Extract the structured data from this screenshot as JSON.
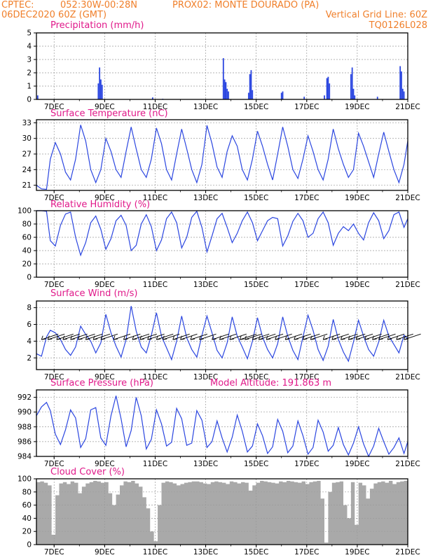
{
  "header": {
    "line1_left": "CPTEC:",
    "line1_coords": "052:30W-00:28N",
    "line1_station": "PROX02: MONTE DOURADO (PA)",
    "line2_left": "06DEC2020 60Z (GMT)",
    "line2_right": "Vertical Grid Line: 60Z",
    "line3_right": "TQ0126L028"
  },
  "colors": {
    "header": "#f07f2a",
    "panel_title": "#e0198a",
    "series_line": "#2b46e0",
    "cloud_fill": "#a9a9a9",
    "arrows": "#000000"
  },
  "chart_data": [
    {
      "type": "bar",
      "title": "Precipitation (mm/h)",
      "x_tick_labels": [
        "7DEC",
        "9DEC",
        "11DEC",
        "13DEC",
        "15DEC",
        "17DEC",
        "19DEC",
        "21DEC"
      ],
      "x_range_days": [
        6.3,
        21.0
      ],
      "ylim": [
        0,
        5
      ],
      "yticks": [
        0,
        1,
        2,
        3,
        4,
        5
      ],
      "grid": true,
      "points": [
        {
          "x": 6.35,
          "y": 0.3
        },
        {
          "x": 8.75,
          "y": 1.2
        },
        {
          "x": 8.8,
          "y": 2.4
        },
        {
          "x": 8.85,
          "y": 1.5
        },
        {
          "x": 8.9,
          "y": 1.1
        },
        {
          "x": 10.9,
          "y": 0.15
        },
        {
          "x": 11.3,
          "y": 0.05
        },
        {
          "x": 13.7,
          "y": 3.1
        },
        {
          "x": 13.75,
          "y": 1.5
        },
        {
          "x": 13.8,
          "y": 1.3
        },
        {
          "x": 13.85,
          "y": 0.8
        },
        {
          "x": 13.9,
          "y": 0.6
        },
        {
          "x": 14.7,
          "y": 0.5
        },
        {
          "x": 14.75,
          "y": 1.9
        },
        {
          "x": 14.8,
          "y": 2.2
        },
        {
          "x": 14.85,
          "y": 0.7
        },
        {
          "x": 16.0,
          "y": 0.5
        },
        {
          "x": 16.05,
          "y": 0.6
        },
        {
          "x": 16.9,
          "y": 0.2
        },
        {
          "x": 17.7,
          "y": 0.3
        },
        {
          "x": 17.8,
          "y": 1.6
        },
        {
          "x": 17.85,
          "y": 1.7
        },
        {
          "x": 17.9,
          "y": 1.2
        },
        {
          "x": 18.75,
          "y": 1.9
        },
        {
          "x": 18.8,
          "y": 2.4
        },
        {
          "x": 18.85,
          "y": 0.8
        },
        {
          "x": 18.9,
          "y": 0.3
        },
        {
          "x": 19.8,
          "y": 0.2
        },
        {
          "x": 20.7,
          "y": 2.5
        },
        {
          "x": 20.75,
          "y": 2.1
        },
        {
          "x": 20.8,
          "y": 0.8
        },
        {
          "x": 20.85,
          "y": 0.6
        }
      ]
    },
    {
      "type": "line",
      "title": "Surface Temperature (nC)",
      "x_tick_labels": [
        "7DEC",
        "9DEC",
        "11DEC",
        "13DEC",
        "15DEC",
        "17DEC",
        "19DEC",
        "21DEC"
      ],
      "ylim": [
        20,
        33.6
      ],
      "yticks": [
        21,
        24,
        27,
        30,
        33
      ],
      "grid": true,
      "x": [
        6.3,
        6.5,
        6.7,
        6.85,
        7.05,
        7.25,
        7.45,
        7.65,
        7.85,
        8.05,
        8.25,
        8.45,
        8.65,
        8.85,
        9.05,
        9.25,
        9.45,
        9.65,
        9.85,
        10.05,
        10.25,
        10.45,
        10.65,
        10.85,
        11.05,
        11.25,
        11.45,
        11.65,
        11.85,
        12.05,
        12.25,
        12.45,
        12.65,
        12.85,
        13.05,
        13.25,
        13.45,
        13.65,
        13.85,
        14.05,
        14.25,
        14.45,
        14.65,
        14.85,
        15.05,
        15.25,
        15.45,
        15.65,
        15.85,
        16.05,
        16.25,
        16.45,
        16.65,
        16.85,
        17.05,
        17.25,
        17.45,
        17.65,
        17.85,
        18.05,
        18.25,
        18.45,
        18.65,
        18.85,
        19.05,
        19.25,
        19.45,
        19.65,
        19.85,
        20.05,
        20.25,
        20.45,
        20.65,
        20.85,
        21.0
      ],
      "y": [
        21,
        20.3,
        20.2,
        26,
        29.2,
        27,
        23.5,
        22,
        26,
        32.6,
        29.5,
        24,
        21.5,
        24,
        30,
        27.5,
        24,
        22.5,
        27.5,
        32.2,
        28,
        24,
        22.5,
        26,
        32,
        29,
        24,
        22,
        27,
        31.8,
        28,
        24,
        21.5,
        25,
        32.5,
        29,
        24.5,
        22.5,
        27.5,
        30.5,
        28.5,
        24,
        22,
        26,
        31.4,
        28.5,
        25,
        22,
        27,
        32.2,
        28.5,
        24,
        22.3,
        26,
        30.5,
        27.5,
        24,
        22,
        26,
        31.8,
        28,
        25,
        22.5,
        24,
        31,
        28.5,
        25.5,
        22.5,
        27,
        31.2,
        27.5,
        24,
        21.5,
        25,
        29.5
      ]
    },
    {
      "type": "line",
      "title": "Relative Humidity (%)",
      "x_tick_labels": [
        "7DEC",
        "9DEC",
        "11DEC",
        "13DEC",
        "15DEC",
        "17DEC",
        "19DEC",
        "21DEC"
      ],
      "ylim": [
        0,
        100
      ],
      "yticks": [
        0,
        20,
        40,
        60,
        80,
        100
      ],
      "grid": true,
      "x": [
        6.3,
        6.5,
        6.7,
        6.85,
        7.05,
        7.25,
        7.45,
        7.65,
        7.85,
        8.05,
        8.25,
        8.45,
        8.65,
        8.85,
        9.05,
        9.25,
        9.45,
        9.65,
        9.85,
        10.05,
        10.25,
        10.45,
        10.65,
        10.85,
        11.05,
        11.25,
        11.45,
        11.65,
        11.85,
        12.05,
        12.25,
        12.45,
        12.65,
        12.85,
        13.05,
        13.25,
        13.45,
        13.65,
        13.85,
        14.05,
        14.25,
        14.45,
        14.65,
        14.85,
        15.05,
        15.25,
        15.45,
        15.65,
        15.85,
        16.05,
        16.25,
        16.45,
        16.65,
        16.85,
        17.05,
        17.25,
        17.45,
        17.65,
        17.85,
        18.05,
        18.25,
        18.45,
        18.65,
        18.85,
        19.05,
        19.25,
        19.45,
        19.65,
        19.85,
        20.05,
        20.25,
        20.45,
        20.65,
        20.85,
        21.0
      ],
      "y": [
        100,
        100,
        99,
        55,
        47,
        78,
        95,
        98,
        60,
        33,
        52,
        82,
        92,
        72,
        42,
        58,
        85,
        93,
        78,
        40,
        48,
        80,
        94,
        76,
        40,
        56,
        88,
        98,
        82,
        44,
        60,
        90,
        99,
        75,
        38,
        62,
        88,
        96,
        75,
        52,
        66,
        85,
        98,
        82,
        55,
        70,
        85,
        90,
        88,
        47,
        62,
        84,
        96,
        85,
        60,
        66,
        88,
        98,
        82,
        48,
        66,
        76,
        70,
        80,
        66,
        56,
        82,
        97,
        85,
        58,
        70,
        94,
        98,
        75,
        88
      ]
    },
    {
      "type": "line",
      "title": "Surface Wind (m/s)",
      "x_tick_labels": [
        "7DEC",
        "9DEC",
        "11DEC",
        "13DEC",
        "15DEC",
        "17DEC",
        "19DEC",
        "21DEC"
      ],
      "ylim": [
        0.6,
        8.8
      ],
      "yticks": [
        2,
        4,
        6,
        8
      ],
      "grid": true,
      "x": [
        6.3,
        6.5,
        6.7,
        6.85,
        7.05,
        7.25,
        7.45,
        7.65,
        7.85,
        8.05,
        8.25,
        8.45,
        8.65,
        8.85,
        9.05,
        9.25,
        9.45,
        9.65,
        9.85,
        10.05,
        10.25,
        10.45,
        10.65,
        10.85,
        11.05,
        11.25,
        11.45,
        11.65,
        11.85,
        12.05,
        12.25,
        12.45,
        12.65,
        12.85,
        13.05,
        13.25,
        13.45,
        13.65,
        13.85,
        14.05,
        14.25,
        14.45,
        14.65,
        14.85,
        15.05,
        15.25,
        15.45,
        15.65,
        15.85,
        16.05,
        16.25,
        16.45,
        16.65,
        16.85,
        17.05,
        17.25,
        17.45,
        17.65,
        17.85,
        18.05,
        18.25,
        18.45,
        18.65,
        18.85,
        19.05,
        19.25,
        19.45,
        19.65,
        19.85,
        20.05,
        20.25,
        20.45,
        20.65,
        20.85,
        21.0
      ],
      "y": [
        2.5,
        2.2,
        4.5,
        5.3,
        5.0,
        4.2,
        3.0,
        2.3,
        3.3,
        5.8,
        4.8,
        4.0,
        2.6,
        3.8,
        7.2,
        5.0,
        3.4,
        2.1,
        4.2,
        8.2,
        5.2,
        3.3,
        2.6,
        4.7,
        7.4,
        4.6,
        3.2,
        1.8,
        4.0,
        7.0,
        4.4,
        3.0,
        2.1,
        4.7,
        7.0,
        5.0,
        2.9,
        2.0,
        3.8,
        6.9,
        4.6,
        3.3,
        1.9,
        4.0,
        6.8,
        4.5,
        3.0,
        2.0,
        3.7,
        6.9,
        4.6,
        2.9,
        1.8,
        4.5,
        7.1,
        5.3,
        3.0,
        1.7,
        3.4,
        6.6,
        4.2,
        2.7,
        1.6,
        3.9,
        6.5,
        4.6,
        3.0,
        2.2,
        3.9,
        6.5,
        4.6,
        3.6,
        2.6,
        4.7,
        4.3
      ],
      "direction_arrows_x": [
        6.5,
        6.75,
        7.1,
        7.35,
        7.65,
        7.95,
        8.25,
        8.55,
        8.85,
        9.35,
        9.75,
        10.1,
        10.4,
        10.7,
        11.05,
        11.3,
        11.7,
        12.0,
        12.4,
        12.75,
        13.25,
        13.55,
        13.95,
        14.35,
        14.55,
        14.85,
        15.1,
        15.4,
        15.75,
        16.15,
        16.5,
        16.85,
        17.15,
        17.65,
        18.0,
        18.35,
        18.65,
        18.95,
        19.3,
        19.6,
        19.85,
        20.2,
        20.55,
        20.85
      ]
    },
    {
      "type": "line",
      "title": "Surface Pressure (hPa)",
      "annotation": "Model Altitude: 191.863 m",
      "x_tick_labels": [
        "7DEC",
        "9DEC",
        "11DEC",
        "13DEC",
        "15DEC",
        "17DEC",
        "19DEC",
        "21DEC"
      ],
      "ylim": [
        984,
        993
      ],
      "yticks": [
        984,
        986,
        988,
        990,
        992
      ],
      "grid": true,
      "x": [
        6.3,
        6.5,
        6.7,
        6.85,
        7.05,
        7.25,
        7.45,
        7.65,
        7.85,
        8.05,
        8.25,
        8.45,
        8.65,
        8.85,
        9.05,
        9.25,
        9.45,
        9.65,
        9.85,
        10.05,
        10.25,
        10.45,
        10.65,
        10.85,
        11.05,
        11.25,
        11.45,
        11.65,
        11.85,
        12.05,
        12.25,
        12.45,
        12.65,
        12.85,
        13.05,
        13.25,
        13.45,
        13.65,
        13.85,
        14.05,
        14.25,
        14.45,
        14.65,
        14.85,
        15.05,
        15.25,
        15.45,
        15.65,
        15.85,
        16.05,
        16.25,
        16.45,
        16.65,
        16.85,
        17.05,
        17.25,
        17.45,
        17.65,
        17.85,
        18.05,
        18.25,
        18.45,
        18.65,
        18.85,
        19.05,
        19.25,
        19.45,
        19.65,
        19.85,
        20.05,
        20.25,
        20.45,
        20.65,
        20.85,
        21.0
      ],
      "y": [
        989.5,
        990.7,
        991.3,
        990.2,
        987.0,
        985.6,
        987.6,
        990.3,
        989.2,
        985.2,
        986.4,
        990.3,
        990.6,
        986.5,
        985.5,
        989.5,
        992.2,
        989.1,
        985.3,
        987.5,
        992.0,
        989.5,
        985.0,
        986.3,
        990.3,
        988.4,
        985.4,
        985.9,
        990.5,
        989.1,
        985.5,
        985.8,
        990.2,
        988.9,
        985.2,
        986.0,
        988.8,
        986.5,
        984.6,
        986.6,
        989.6,
        987.4,
        984.6,
        985.4,
        988.4,
        986.8,
        984.4,
        985.3,
        989.0,
        987.4,
        984.5,
        985.4,
        988.8,
        986.8,
        984.3,
        985.2,
        988.9,
        987.3,
        984.7,
        985.5,
        987.9,
        985.6,
        984.2,
        985.8,
        988.0,
        985.7,
        984.0,
        985.4,
        987.8,
        986.0,
        984.3,
        985.2,
        986.5,
        984.4,
        986.0
      ]
    },
    {
      "type": "area",
      "title": "Cloud Cover (%)",
      "x_tick_labels": [
        "7DEC",
        "9DEC",
        "11DEC",
        "13DEC",
        "15DEC",
        "17DEC",
        "19DEC",
        "21DEC"
      ],
      "ylim": [
        0,
        100
      ],
      "yticks": [
        0,
        20,
        40,
        60,
        80,
        100
      ],
      "grid": true,
      "x": [
        6.3,
        6.45,
        6.6,
        6.75,
        6.9,
        7.05,
        7.2,
        7.35,
        7.5,
        7.65,
        7.8,
        7.95,
        8.1,
        8.25,
        8.4,
        8.55,
        8.7,
        8.85,
        9.0,
        9.15,
        9.3,
        9.45,
        9.6,
        9.75,
        9.9,
        10.05,
        10.2,
        10.35,
        10.5,
        10.65,
        10.8,
        10.95,
        11.1,
        11.25,
        11.4,
        11.55,
        11.7,
        11.85,
        12.0,
        12.15,
        12.3,
        12.45,
        12.6,
        12.75,
        12.9,
        13.05,
        13.2,
        13.35,
        13.5,
        13.65,
        13.8,
        13.95,
        14.1,
        14.25,
        14.4,
        14.55,
        14.7,
        14.85,
        15.0,
        15.15,
        15.3,
        15.45,
        15.6,
        15.75,
        15.9,
        16.05,
        16.2,
        16.35,
        16.5,
        16.65,
        16.8,
        16.95,
        17.1,
        17.25,
        17.4,
        17.55,
        17.7,
        17.85,
        18.0,
        18.15,
        18.3,
        18.45,
        18.6,
        18.75,
        18.9,
        19.05,
        19.2,
        19.35,
        19.5,
        19.65,
        19.8,
        19.95,
        20.1,
        20.25,
        20.4,
        20.55,
        20.7,
        20.85,
        21.0
      ],
      "y": [
        95,
        96,
        94,
        90,
        15,
        75,
        93,
        95,
        92,
        96,
        94,
        78,
        88,
        93,
        95,
        97,
        96,
        94,
        95,
        78,
        60,
        76,
        90,
        96,
        95,
        97,
        93,
        88,
        72,
        55,
        20,
        5,
        60,
        94,
        96,
        95,
        93,
        90,
        92,
        94,
        95,
        96,
        96,
        95,
        93,
        92,
        95,
        96,
        95,
        94,
        92,
        96,
        95,
        93,
        95,
        94,
        82,
        90,
        94,
        97,
        96,
        95,
        94,
        93,
        96,
        95,
        97,
        96,
        95,
        94,
        96,
        92,
        95,
        96,
        97,
        70,
        3,
        80,
        94,
        95,
        96,
        60,
        40,
        95,
        30,
        94,
        90,
        70,
        85,
        93,
        95,
        96,
        94,
        97,
        92,
        95,
        96,
        97,
        96
      ]
    }
  ]
}
